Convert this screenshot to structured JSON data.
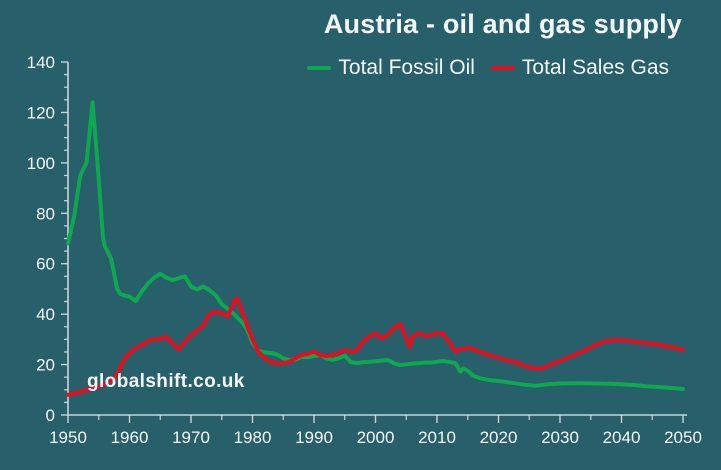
{
  "title": "Austria - oil and gas supply",
  "watermark": "globalshift.co.uk",
  "legend": [
    {
      "label": "Total Fossil Oil",
      "color": "#0da84f"
    },
    {
      "label": "Total Sales Gas",
      "color": "#e60d1e"
    }
  ],
  "colors": {
    "background": "#275f6a",
    "oil_green": "#0da84f",
    "gas_red": "#e60d1e",
    "axis": "#c9d4d7",
    "text": "#f4f7f8"
  },
  "chart_data": {
    "type": "line",
    "title": "Austria - oil and gas supply",
    "xlabel": "",
    "ylabel": "",
    "xlim": [
      1950,
      2050
    ],
    "ylim": [
      0,
      140
    ],
    "x_tick_labels": [
      1950,
      1960,
      1970,
      1980,
      1990,
      2000,
      2010,
      2020,
      2030,
      2040,
      2050
    ],
    "y_tick_labels": [
      0,
      20,
      40,
      60,
      80,
      100,
      120,
      140
    ],
    "x_minor_step": 5,
    "y_minor_step": 5,
    "grid": false,
    "legend_position": "top",
    "series": [
      {
        "name": "Total Fossil Oil",
        "color": "#0da84f",
        "points": [
          [
            1950,
            68
          ],
          [
            1951,
            79
          ],
          [
            1952,
            95
          ],
          [
            1953,
            100
          ],
          [
            1954,
            124
          ],
          [
            1954.8,
            100
          ],
          [
            1955,
            93
          ],
          [
            1955.7,
            70
          ],
          [
            1956,
            67
          ],
          [
            1957,
            62
          ],
          [
            1958,
            50
          ],
          [
            1958.5,
            48
          ],
          [
            1959,
            47.5
          ],
          [
            1960,
            47
          ],
          [
            1961,
            45.2
          ],
          [
            1962,
            49
          ],
          [
            1963,
            52
          ],
          [
            1964,
            54.5
          ],
          [
            1965,
            56
          ],
          [
            1966,
            54.5
          ],
          [
            1967,
            53.5
          ],
          [
            1968,
            54.3
          ],
          [
            1969,
            55
          ],
          [
            1970,
            51
          ],
          [
            1971,
            49.8
          ],
          [
            1972,
            51
          ],
          [
            1973,
            49.5
          ],
          [
            1974,
            47.5
          ],
          [
            1975,
            44
          ],
          [
            1976,
            42
          ],
          [
            1977,
            40
          ],
          [
            1978,
            37.5
          ],
          [
            1979,
            34.5
          ],
          [
            1980,
            28.5
          ],
          [
            1981,
            25.5
          ],
          [
            1982,
            24.8
          ],
          [
            1983,
            24.6
          ],
          [
            1984,
            24
          ],
          [
            1985,
            22.5
          ],
          [
            1986,
            21.8
          ],
          [
            1987,
            22
          ],
          [
            1988,
            23
          ],
          [
            1989,
            22.9
          ],
          [
            1990,
            23.4
          ],
          [
            1991,
            23.8
          ],
          [
            1992,
            22.5
          ],
          [
            1993,
            21.8
          ],
          [
            1994,
            22.5
          ],
          [
            1995,
            23.5
          ],
          [
            1996,
            21
          ],
          [
            1997,
            20.6
          ],
          [
            1998,
            21
          ],
          [
            1999,
            21.1
          ],
          [
            2000,
            21.3
          ],
          [
            2001,
            21.6
          ],
          [
            2002,
            21.8
          ],
          [
            2003,
            20.5
          ],
          [
            2004,
            19.8
          ],
          [
            2005,
            20.1
          ],
          [
            2006,
            20.4
          ],
          [
            2007,
            20.5
          ],
          [
            2008,
            20.8
          ],
          [
            2009,
            20.8
          ],
          [
            2010,
            21.1
          ],
          [
            2011,
            21.4
          ],
          [
            2012,
            21.1
          ],
          [
            2013,
            20.5
          ],
          [
            2013.8,
            17.2
          ],
          [
            2014.3,
            18.5
          ],
          [
            2015,
            17.5
          ],
          [
            2016,
            15.5
          ],
          [
            2017,
            14.6
          ],
          [
            2018,
            14.1
          ],
          [
            2019,
            13.7
          ],
          [
            2020,
            13.5
          ],
          [
            2022,
            12.8
          ],
          [
            2024,
            12.1
          ],
          [
            2026,
            11.6
          ],
          [
            2028,
            12.2
          ],
          [
            2030,
            12.5
          ],
          [
            2032,
            12.6
          ],
          [
            2034,
            12.6
          ],
          [
            2036,
            12.5
          ],
          [
            2038,
            12.4
          ],
          [
            2040,
            12.2
          ],
          [
            2042,
            11.9
          ],
          [
            2044,
            11.4
          ],
          [
            2046,
            11.1
          ],
          [
            2048,
            10.7
          ],
          [
            2050,
            10.3
          ]
        ]
      },
      {
        "name": "Total Sales Gas",
        "color": "#e60d1e",
        "points": [
          [
            1950,
            8
          ],
          [
            1951,
            8.6
          ],
          [
            1952,
            9.2
          ],
          [
            1953,
            10
          ],
          [
            1954,
            10.6
          ],
          [
            1955,
            11.3
          ],
          [
            1956,
            12.2
          ],
          [
            1957,
            13.5
          ],
          [
            1958,
            16
          ],
          [
            1959,
            21.5
          ],
          [
            1960,
            24.5
          ],
          [
            1961,
            26.5
          ],
          [
            1962,
            27.8
          ],
          [
            1963,
            29.3
          ],
          [
            1964,
            30
          ],
          [
            1965,
            30.3
          ],
          [
            1966,
            31
          ],
          [
            1967,
            28.5
          ],
          [
            1968,
            26
          ],
          [
            1969,
            29
          ],
          [
            1970,
            31.5
          ],
          [
            1971,
            33.5
          ],
          [
            1972,
            35.5
          ],
          [
            1973,
            40
          ],
          [
            1974,
            41
          ],
          [
            1975,
            40.3
          ],
          [
            1976,
            39.2
          ],
          [
            1977,
            45
          ],
          [
            1977.5,
            46.3
          ],
          [
            1978,
            43
          ],
          [
            1979,
            36.4
          ],
          [
            1980,
            30
          ],
          [
            1981,
            25
          ],
          [
            1982,
            22.5
          ],
          [
            1983,
            21
          ],
          [
            1984,
            20.6
          ],
          [
            1985,
            20.6
          ],
          [
            1986,
            21.1
          ],
          [
            1987,
            22.5
          ],
          [
            1988,
            23.8
          ],
          [
            1989,
            24.2
          ],
          [
            1990,
            25.1
          ],
          [
            1991,
            23.8
          ],
          [
            1992,
            23.4
          ],
          [
            1993,
            23.8
          ],
          [
            1994,
            24.5
          ],
          [
            1995,
            25.8
          ],
          [
            1996,
            25.1
          ],
          [
            1997,
            25.8
          ],
          [
            1998,
            29.1
          ],
          [
            1999,
            31.1
          ],
          [
            2000,
            32.4
          ],
          [
            2001,
            30.4
          ],
          [
            2002,
            31.7
          ],
          [
            2003,
            34.5
          ],
          [
            2004,
            36
          ],
          [
            2005,
            30.5
          ],
          [
            2005.6,
            27.1
          ],
          [
            2006,
            31
          ],
          [
            2007,
            32.4
          ],
          [
            2008,
            31.5
          ],
          [
            2009,
            31.7
          ],
          [
            2010,
            32.4
          ],
          [
            2011,
            32.2
          ],
          [
            2012,
            29
          ],
          [
            2013,
            25.2
          ],
          [
            2014,
            26.2
          ],
          [
            2015,
            26.7
          ],
          [
            2016,
            26
          ],
          [
            2017,
            25.1
          ],
          [
            2018,
            24.2
          ],
          [
            2019,
            23.4
          ],
          [
            2020,
            22.7
          ],
          [
            2021,
            22
          ],
          [
            2022,
            21.3
          ],
          [
            2023,
            20.8
          ],
          [
            2024,
            19.8
          ],
          [
            2025,
            19
          ],
          [
            2026,
            18.5
          ],
          [
            2027,
            18.5
          ],
          [
            2028,
            19.5
          ],
          [
            2029,
            20.5
          ],
          [
            2030,
            21.5
          ],
          [
            2031,
            22.5
          ],
          [
            2032,
            23.5
          ],
          [
            2033,
            24.5
          ],
          [
            2034,
            25.5
          ],
          [
            2035,
            26.8
          ],
          [
            2036,
            28
          ],
          [
            2037,
            29
          ],
          [
            2038,
            29.5
          ],
          [
            2039,
            29.8
          ],
          [
            2040,
            29.7
          ],
          [
            2041,
            29.4
          ],
          [
            2042,
            29.1
          ],
          [
            2043,
            28.8
          ],
          [
            2044,
            28.5
          ],
          [
            2045,
            28.2
          ],
          [
            2046,
            28
          ],
          [
            2047,
            27.4
          ],
          [
            2048,
            27
          ],
          [
            2049,
            26.4
          ],
          [
            2050,
            25.8
          ]
        ]
      }
    ]
  }
}
